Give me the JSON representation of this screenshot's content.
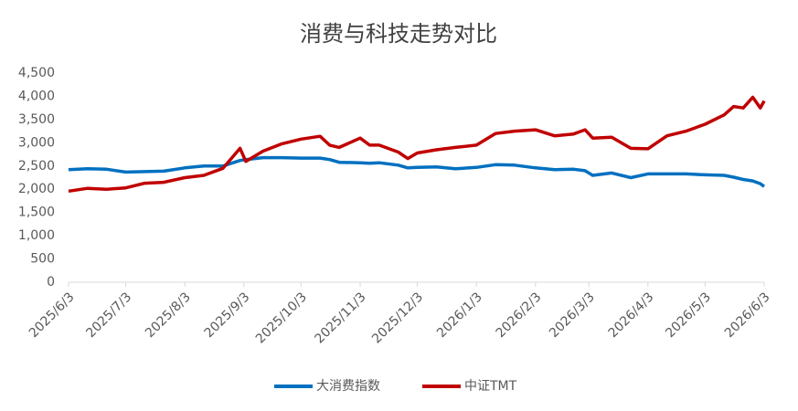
{
  "chart_data": {
    "type": "line",
    "title": "消费与科技走势对比",
    "x": [
      "2025/6/3",
      "2025/6/13",
      "2025/6/23",
      "2025/7/3",
      "2025/7/13",
      "2025/7/23",
      "2025/8/3",
      "2025/8/13",
      "2025/8/23",
      "2025/9/1",
      "2025/9/4",
      "2025/9/13",
      "2025/9/23",
      "2025/10/3",
      "2025/10/13",
      "2025/10/18",
      "2025/10/23",
      "2025/11/3",
      "2025/11/8",
      "2025/11/13",
      "2025/11/23",
      "2025/11/28",
      "2025/12/3",
      "2025/12/13",
      "2025/12/23",
      "2026/1/3",
      "2026/1/13",
      "2026/1/23",
      "2026/2/3",
      "2026/2/13",
      "2026/2/23",
      "2026/3/1",
      "2026/3/5",
      "2026/3/15",
      "2026/3/25",
      "2026/4/3",
      "2026/4/13",
      "2026/4/23",
      "2026/5/3",
      "2026/5/13",
      "2026/5/18",
      "2026/5/23",
      "2026/5/28",
      "2026/6/1",
      "2026/6/3"
    ],
    "series": [
      {
        "name": "大消费指数",
        "color": "#0070c0",
        "values": [
          2420,
          2440,
          2430,
          2370,
          2380,
          2390,
          2460,
          2500,
          2500,
          2620,
          2640,
          2680,
          2680,
          2670,
          2670,
          2640,
          2580,
          2570,
          2560,
          2570,
          2520,
          2460,
          2470,
          2480,
          2440,
          2470,
          2530,
          2520,
          2460,
          2420,
          2430,
          2400,
          2300,
          2350,
          2250,
          2330,
          2330,
          2330,
          2310,
          2300,
          2260,
          2210,
          2180,
          2120,
          2060
        ]
      },
      {
        "name": "中证TMT",
        "color": "#c00000",
        "values": [
          1960,
          2020,
          2000,
          2030,
          2130,
          2150,
          2250,
          2300,
          2450,
          2880,
          2600,
          2820,
          2980,
          3080,
          3140,
          2950,
          2900,
          3100,
          2950,
          2950,
          2800,
          2660,
          2780,
          2850,
          2900,
          2950,
          3200,
          3250,
          3280,
          3150,
          3190,
          3280,
          3100,
          3120,
          2880,
          2870,
          3150,
          3250,
          3400,
          3600,
          3780,
          3750,
          3980,
          3750,
          3900
        ]
      }
    ],
    "xlim": [
      "2025/6/3",
      "2026/6/3"
    ],
    "xticks": [
      "2025/6/3",
      "2025/7/3",
      "2025/8/3",
      "2025/9/3",
      "2025/10/3",
      "2025/11/3",
      "2025/12/3",
      "2026/1/3",
      "2026/2/3",
      "2026/3/3",
      "2026/4/3",
      "2026/5/3",
      "2026/6/3"
    ],
    "ylim": [
      0,
      4500
    ],
    "yticks": [
      0,
      500,
      {
        "value": 1000,
        "label": "1,000"
      },
      {
        "value": 1500,
        "label": "1,500"
      },
      {
        "value": 2000,
        "label": "2,000"
      },
      {
        "value": 2500,
        "label": "2,500"
      },
      {
        "value": 3000,
        "label": "3,000"
      },
      {
        "value": 3500,
        "label": "3,500"
      },
      {
        "value": 4000,
        "label": "4,000"
      },
      {
        "value": 4500,
        "label": "4,500"
      }
    ],
    "legend": "bottom"
  }
}
